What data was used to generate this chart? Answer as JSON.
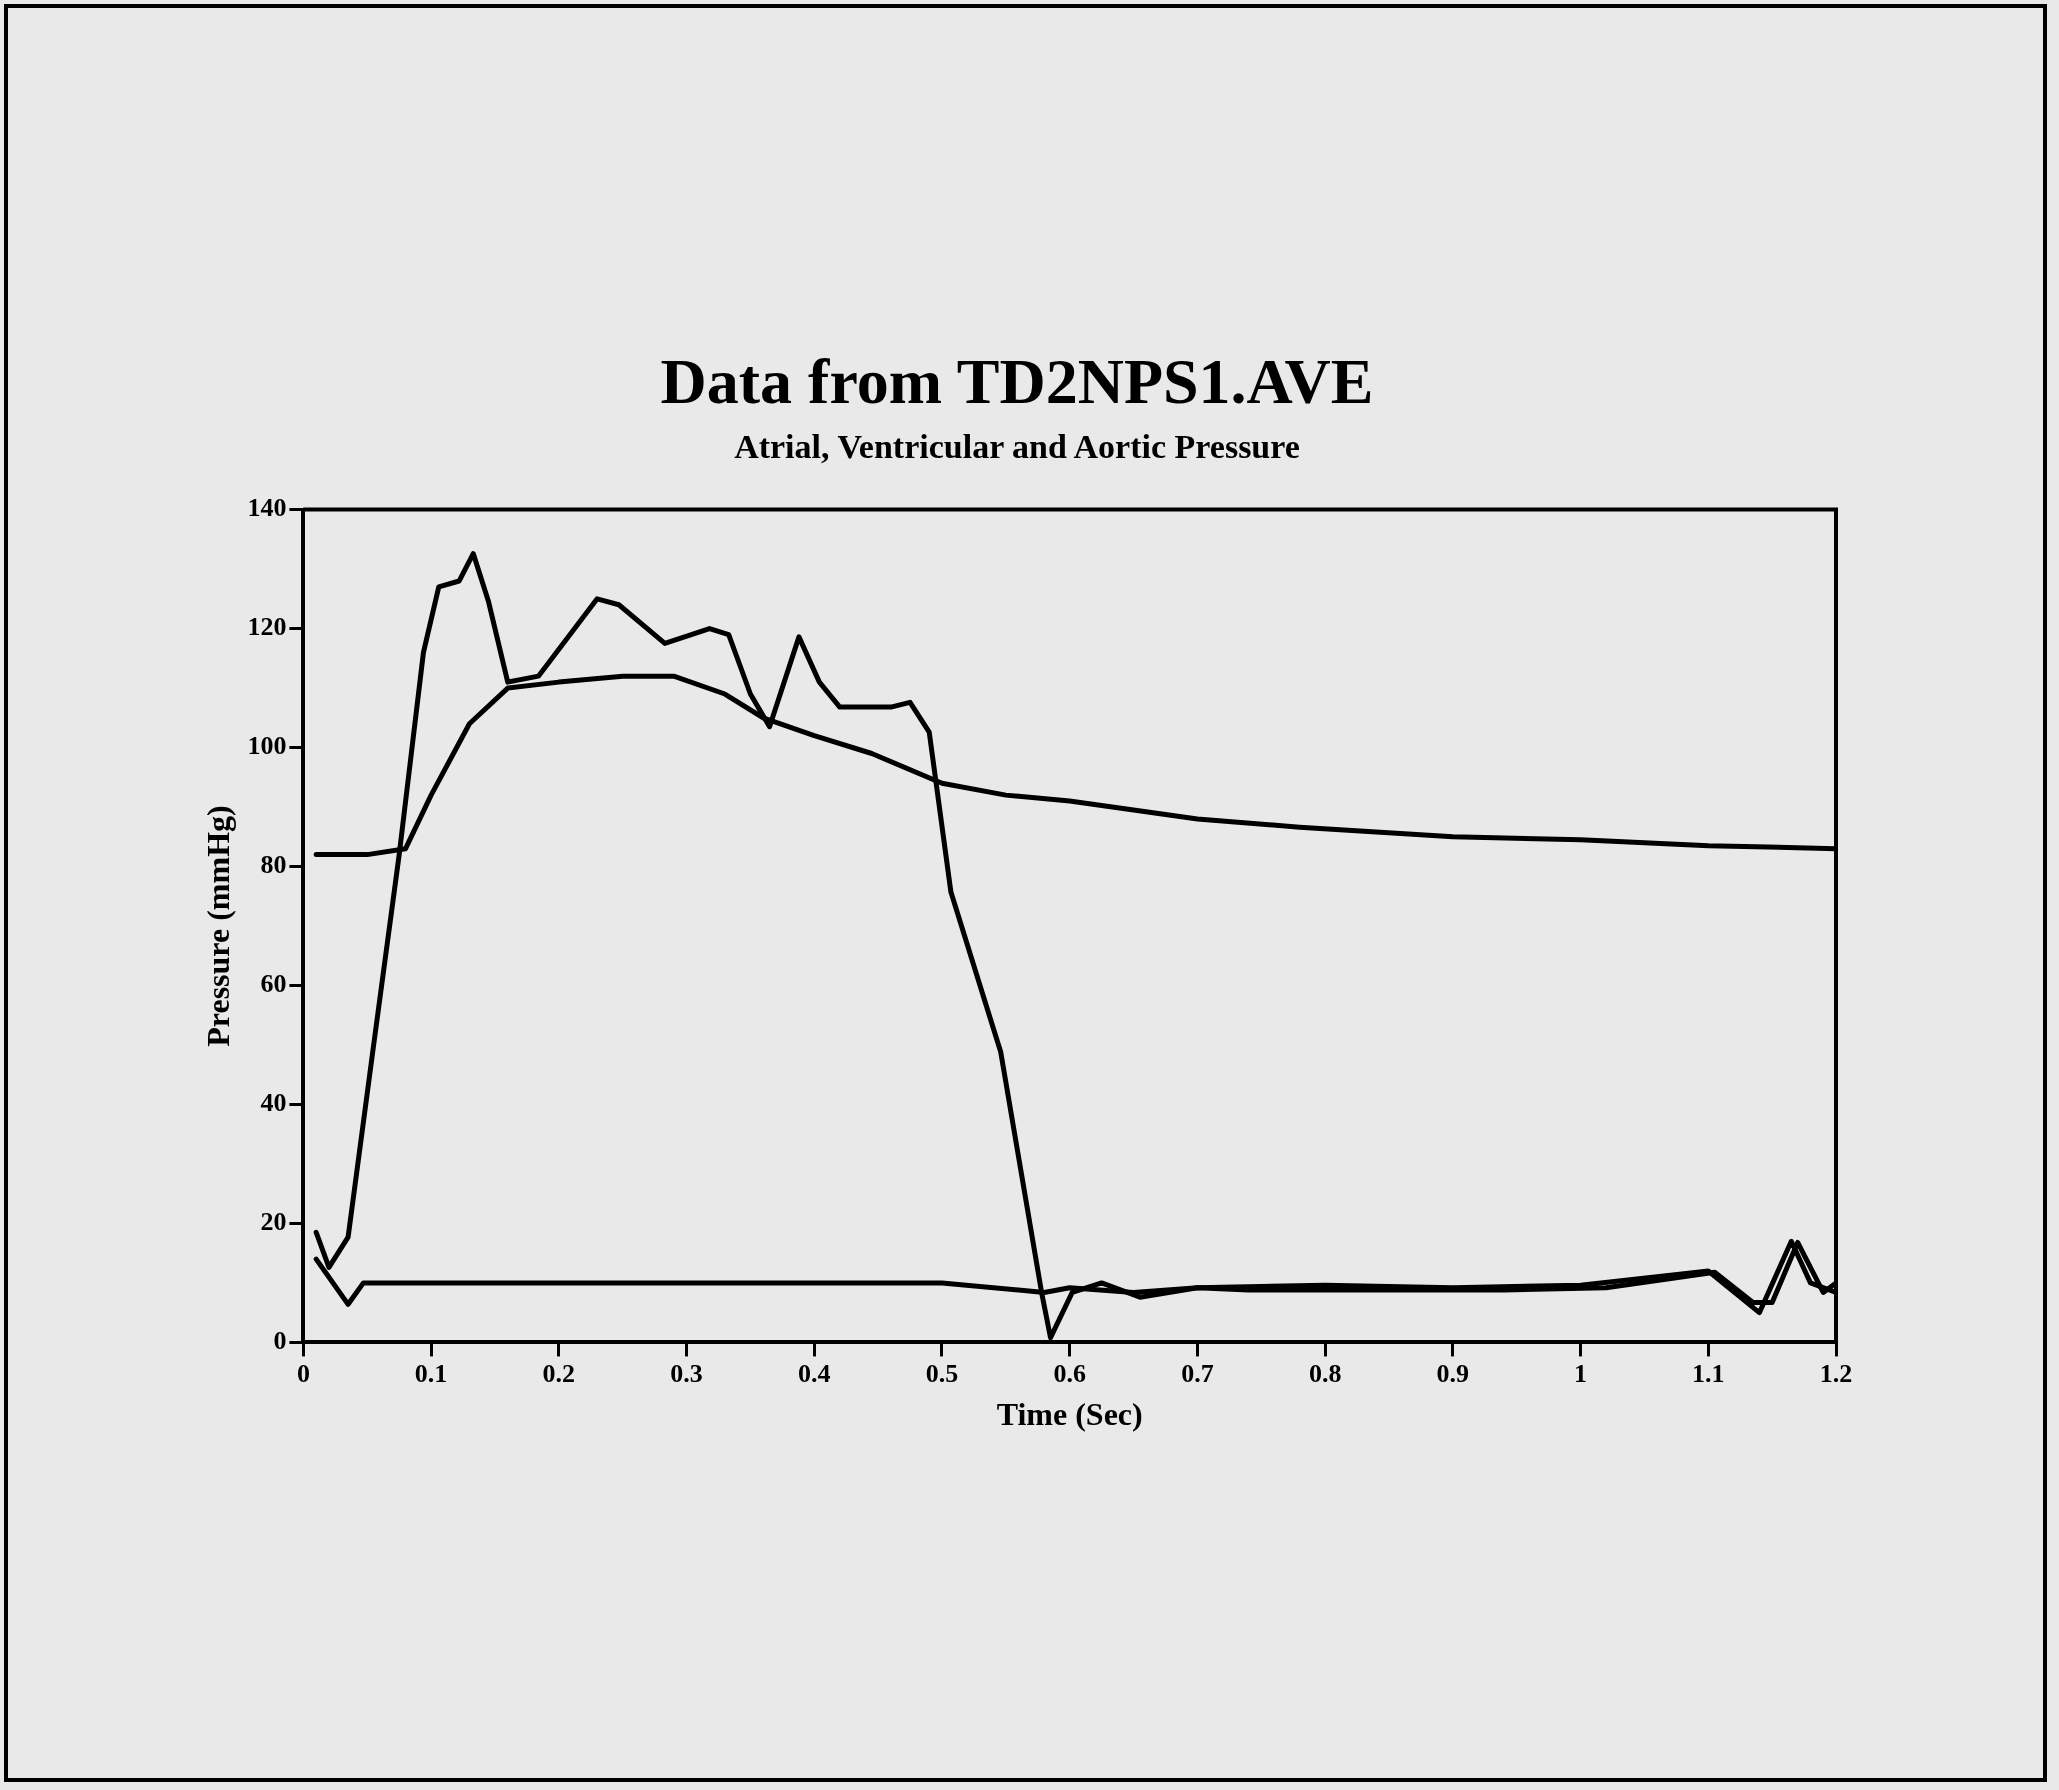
{
  "chart_data": {
    "type": "line",
    "title": "Data from TD2NPS1.AVE",
    "subtitle": "Atrial, Ventricular and Aortic Pressure",
    "xlabel": "Time (Sec)",
    "ylabel": "Pressure (mmHg)",
    "xlim": [
      0,
      1.2
    ],
    "xticks": [
      0,
      0.1,
      0.2,
      0.3,
      0.4,
      0.5,
      0.6,
      0.7,
      0.8,
      0.9,
      1,
      1.1,
      1.2
    ],
    "ylim": [
      0,
      140
    ],
    "yticks": [
      0,
      20,
      40,
      60,
      80,
      100,
      120,
      140
    ],
    "grid": false,
    "legend": false,
    "marker": "none",
    "line_style": "solid",
    "series": [
      {
        "color": "#000000",
        "x": [
          0.01,
          0.05,
          0.08,
          0.1,
          0.13,
          0.16,
          0.2,
          0.25,
          0.29,
          0.33,
          0.36,
          0.4,
          0.445,
          0.5,
          0.55,
          0.6,
          0.7,
          0.78,
          0.9,
          1.0,
          1.1,
          1.2
        ],
        "values": [
          82,
          82,
          83,
          92,
          104,
          110,
          111,
          112,
          112,
          109,
          105,
          102,
          99,
          94,
          92,
          91,
          88,
          86.6,
          85,
          84.5,
          83.5,
          83
        ]
      },
      {
        "color": "#000000",
        "x": [
          0.01,
          0.02,
          0.035,
          0.055,
          0.075,
          0.094,
          0.106,
          0.122,
          0.133,
          0.145,
          0.16,
          0.184,
          0.23,
          0.247,
          0.283,
          0.318,
          0.333,
          0.35,
          0.365,
          0.388,
          0.404,
          0.42,
          0.46,
          0.475,
          0.49,
          0.507,
          0.546,
          0.578,
          0.585,
          0.602,
          0.625,
          0.655,
          0.7,
          0.74,
          0.86,
          0.94,
          1.02,
          1.105,
          1.135,
          1.15,
          1.17,
          1.19,
          1.2
        ],
        "values": [
          18.5,
          12.6,
          17.7,
          50,
          82,
          116,
          127,
          128,
          132.6,
          124.5,
          111,
          112,
          125,
          124,
          117.5,
          120,
          119,
          109,
          103.5,
          118.6,
          111,
          106.8,
          106.8,
          107.6,
          102.6,
          75.7,
          48.8,
          8.4,
          0.8,
          8.4,
          10,
          7.6,
          9.2,
          8.8,
          8.8,
          8.8,
          9.2,
          11.8,
          6.7,
          6.7,
          16.8,
          8.4,
          10
        ]
      },
      {
        "color": "#000000",
        "x": [
          0.01,
          0.035,
          0.047,
          0.1,
          0.3,
          0.5,
          0.58,
          0.6,
          0.65,
          0.7,
          0.8,
          0.9,
          1.0,
          1.1,
          1.14,
          1.165,
          1.18,
          1.2
        ],
        "values": [
          14,
          6.4,
          10,
          10,
          10,
          10,
          8.4,
          9.2,
          8.4,
          9.2,
          9.6,
          9.2,
          9.6,
          12,
          5,
          17,
          10,
          8.4
        ]
      }
    ]
  }
}
